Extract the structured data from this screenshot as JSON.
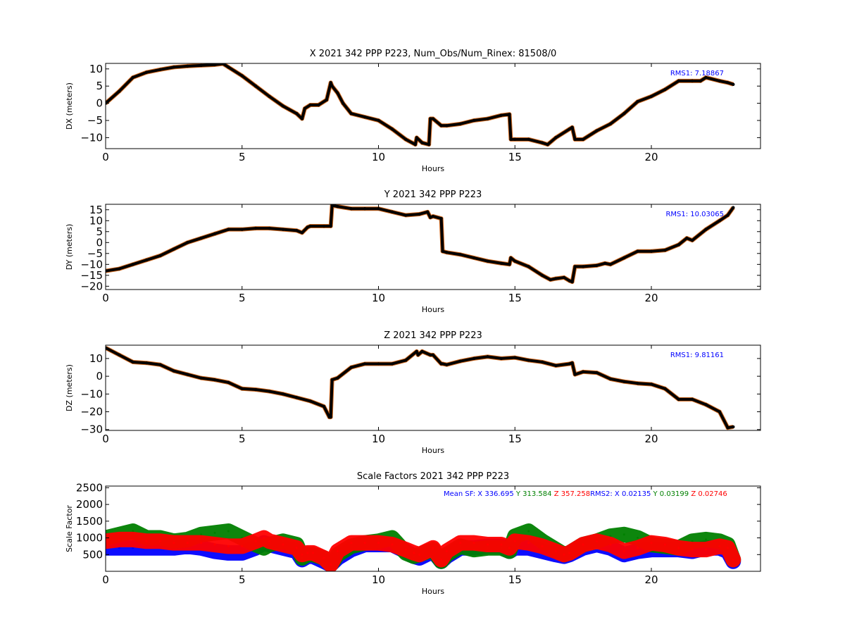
{
  "colors": {
    "black": "#000000",
    "orange": "#d2691e",
    "blue": "#0000ff",
    "green": "#008000",
    "red": "#ff0000"
  },
  "chart_data": [
    {
      "type": "scatter",
      "title": "X 2021 342 PPP  P223, Num_Obs/Num_Rinex: 81508/0",
      "xlabel": "Hours",
      "ylabel": "DX (meters)",
      "xlim": [
        0,
        24
      ],
      "ylim": [
        -13.2,
        11.6
      ],
      "xticks": [
        0,
        5,
        10,
        15,
        20
      ],
      "yticks": [
        10,
        5,
        0,
        -5,
        -10
      ],
      "annotation": "RMS1:  7.18867",
      "x": [
        0,
        0.5,
        1,
        1.5,
        2,
        2.5,
        3,
        3.5,
        4,
        4.3,
        4.5,
        5,
        5.5,
        6,
        6.5,
        7,
        7.2,
        7.3,
        7.5,
        7.8,
        8.1,
        8.25,
        8.3,
        8.5,
        8.7,
        9,
        9.5,
        10,
        10.5,
        11,
        11.35,
        11.4,
        11.6,
        11.85,
        11.9,
        12.0,
        12.3,
        12.5,
        13,
        13.5,
        14,
        14.5,
        14.8,
        14.85,
        15,
        15.5,
        16,
        16.2,
        16.5,
        17,
        17.1,
        17.2,
        17.5,
        18,
        18.5,
        19,
        19.5,
        20,
        20.5,
        21,
        21.5,
        21.8,
        22,
        22.5,
        22.8,
        23
      ],
      "y": [
        0,
        3.5,
        7.5,
        9,
        9.8,
        10.5,
        10.8,
        11,
        11.2,
        11.5,
        10.5,
        8,
        5,
        2,
        -0.8,
        -3,
        -4.5,
        -1.5,
        -0.5,
        -0.5,
        1,
        6,
        5,
        3,
        0,
        -3,
        -4,
        -5,
        -7.5,
        -10.5,
        -12,
        -10,
        -11.5,
        -12,
        -4.5,
        -4.5,
        -6.5,
        -6.5,
        -6,
        -5,
        -4.5,
        -3.5,
        -3.2,
        -10.5,
        -10.5,
        -10.5,
        -11.5,
        -12,
        -10,
        -7.5,
        -7,
        -10.5,
        -10.5,
        -8,
        -6,
        -3,
        0.5,
        2,
        4,
        6.5,
        6.5,
        6.5,
        7.5,
        6.5,
        6,
        5.5
      ]
    },
    {
      "type": "scatter",
      "title": "Y 2021 342 PPP  P223",
      "xlabel": "Hours",
      "ylabel": "DY (meters)",
      "xlim": [
        0,
        24
      ],
      "ylim": [
        -21.5,
        17.5
      ],
      "xticks": [
        0,
        5,
        10,
        15,
        20
      ],
      "yticks": [
        15,
        10,
        5,
        0,
        -5,
        -10,
        -15,
        -20
      ],
      "annotation": "RMS1: 10.03065",
      "x": [
        0,
        0.5,
        1,
        1.5,
        2,
        2.5,
        3,
        3.5,
        4,
        4.5,
        5,
        5.5,
        6,
        6.5,
        7,
        7.2,
        7.4,
        7.5,
        8,
        8.25,
        8.3,
        8.5,
        9,
        9.5,
        10,
        10.5,
        11,
        11.5,
        11.8,
        11.9,
        12.0,
        12.3,
        12.35,
        12.5,
        13,
        13.5,
        14,
        14.5,
        14.8,
        14.85,
        15,
        15.5,
        16,
        16.3,
        16.5,
        16.8,
        17,
        17.1,
        17.2,
        17.5,
        18,
        18.3,
        18.5,
        19,
        19.5,
        20,
        20.5,
        21,
        21.3,
        21.5,
        22,
        22.5,
        22.8,
        23
      ],
      "y": [
        -13,
        -12,
        -10,
        -8,
        -6,
        -3,
        0,
        2,
        4,
        6,
        6,
        6.5,
        6.5,
        6,
        5.5,
        4.5,
        7,
        7.5,
        7.5,
        7.5,
        17,
        16.5,
        15.5,
        15.5,
        15.5,
        14,
        12.5,
        13,
        14,
        11.5,
        12,
        11,
        -4,
        -4.5,
        -5.5,
        -7,
        -8.5,
        -9.5,
        -10,
        -7,
        -8.5,
        -11,
        -15,
        -17,
        -16.5,
        -16,
        -17.5,
        -18,
        -11,
        -11,
        -10.5,
        -9.5,
        -10,
        -7,
        -4,
        -4,
        -3.5,
        -1,
        2,
        1,
        6,
        10,
        12.5,
        16
      ]
    },
    {
      "type": "scatter",
      "title": "Z 2021 342 PPP  P223",
      "xlabel": "Hours",
      "ylabel": "DZ (meters)",
      "xlim": [
        0,
        24
      ],
      "ylim": [
        -30.5,
        17.5
      ],
      "xticks": [
        0,
        5,
        10,
        15,
        20
      ],
      "yticks": [
        10,
        0,
        -10,
        -20,
        -30
      ],
      "annotation": "RMS1:  9.81161",
      "x": [
        0,
        0.5,
        1,
        1.5,
        2,
        2.5,
        3,
        3.5,
        4,
        4.5,
        5,
        5.5,
        6,
        6.5,
        7,
        7.5,
        8,
        8.2,
        8.25,
        8.3,
        8.5,
        9,
        9.5,
        10,
        10.5,
        11,
        11.4,
        11.45,
        11.6,
        11.9,
        12.0,
        12.3,
        12.35,
        12.5,
        13,
        13.5,
        14,
        14.5,
        15,
        15.5,
        16,
        16.5,
        17,
        17.1,
        17.2,
        17.5,
        18,
        18.5,
        19,
        19.5,
        20,
        20.5,
        21,
        21.5,
        22,
        22.5,
        22.8,
        23
      ],
      "y": [
        16,
        12,
        8,
        7.5,
        6.5,
        3,
        1,
        -1,
        -2,
        -3.5,
        -7,
        -7.5,
        -8.5,
        -10,
        -12,
        -14,
        -17,
        -23,
        -23,
        -2,
        -1,
        5,
        7,
        7,
        7,
        9,
        14,
        12,
        14,
        12,
        12,
        7,
        7,
        6.5,
        8.5,
        10,
        11,
        10,
        10.5,
        9,
        8,
        6,
        7,
        7.5,
        1,
        2.5,
        2,
        -1.5,
        -3,
        -4,
        -4.5,
        -7,
        -13,
        -13,
        -16,
        -20,
        -29,
        -28.5
      ]
    },
    {
      "type": "scatter",
      "title": "Scale Factors 2021 342 PPP  P223",
      "xlabel": "Hours",
      "ylabel": "Scale Factor",
      "xlim": [
        0,
        24
      ],
      "ylim": [
        0,
        2550
      ],
      "xticks": [
        0,
        5,
        10,
        15,
        20
      ],
      "yticks": [
        2500,
        2000,
        1500,
        1000,
        500
      ],
      "annotation": {
        "mean_prefix": "Mean SF: ",
        "x": "X 336.695",
        "y": "Y 313.584",
        "z": "Z 357.258",
        "rms_prefix": "RMS2: ",
        "rx": "X  0.02135",
        "ry": "Y  0.03199",
        "rz": "Z  0.02746"
      },
      "x": [
        0,
        0.5,
        1,
        1.5,
        2,
        2.5,
        3,
        3.5,
        4,
        4.5,
        5,
        5.5,
        5.8,
        6,
        6.5,
        7,
        7.2,
        7.4,
        7.6,
        8,
        8.25,
        8.5,
        9,
        9.5,
        10,
        10.5,
        11,
        11.3,
        11.5,
        12,
        12.3,
        12.5,
        13,
        13.5,
        14,
        14.5,
        14.8,
        15,
        15.5,
        16,
        16.5,
        16.8,
        17,
        17.5,
        18,
        18.5,
        19,
        19.5,
        20,
        20.5,
        21,
        21.5,
        22,
        22.5,
        22.8,
        23
      ],
      "series": [
        {
          "name": "",
          "values": [
            700,
            700,
            700,
            700,
            700,
            700,
            750,
            700,
            600,
            550,
            550,
            700,
            850,
            800,
            700,
            600,
            350,
            450,
            450,
            300,
            200,
            400,
            650,
            800,
            800,
            800,
            600,
            450,
            400,
            600,
            300,
            450,
            700,
            700,
            750,
            750,
            600,
            700,
            700,
            600,
            500,
            450,
            500,
            700,
            800,
            700,
            500,
            600,
            650,
            650,
            650,
            600,
            700,
            700,
            600,
            300
          ]
        },
        {
          "name": "",
          "values": [
            900,
            950,
            950,
            900,
            900,
            850,
            850,
            850,
            800,
            750,
            750,
            900,
            1000,
            900,
            800,
            700,
            500,
            550,
            550,
            400,
            200,
            600,
            850,
            850,
            850,
            800,
            650,
            550,
            500,
            700,
            350,
            600,
            850,
            850,
            800,
            800,
            700,
            900,
            850,
            750,
            600,
            500,
            550,
            800,
            900,
            800,
            600,
            700,
            850,
            800,
            700,
            650,
            650,
            750,
            700,
            350
          ]
        },
        {
          "name": "",
          "values": [
            1000,
            1100,
            1200,
            1000,
            1000,
            900,
            950,
            1100,
            1150,
            1200,
            1000,
            800,
            700,
            800,
            900,
            800,
            400,
            500,
            500,
            400,
            200,
            500,
            750,
            850,
            900,
            1000,
            550,
            450,
            500,
            650,
            300,
            500,
            750,
            650,
            700,
            700,
            600,
            1050,
            1200,
            900,
            650,
            500,
            550,
            800,
            900,
            1050,
            1100,
            1000,
            800,
            750,
            700,
            900,
            950,
            900,
            800,
            350
          ]
        }
      ]
    }
  ]
}
